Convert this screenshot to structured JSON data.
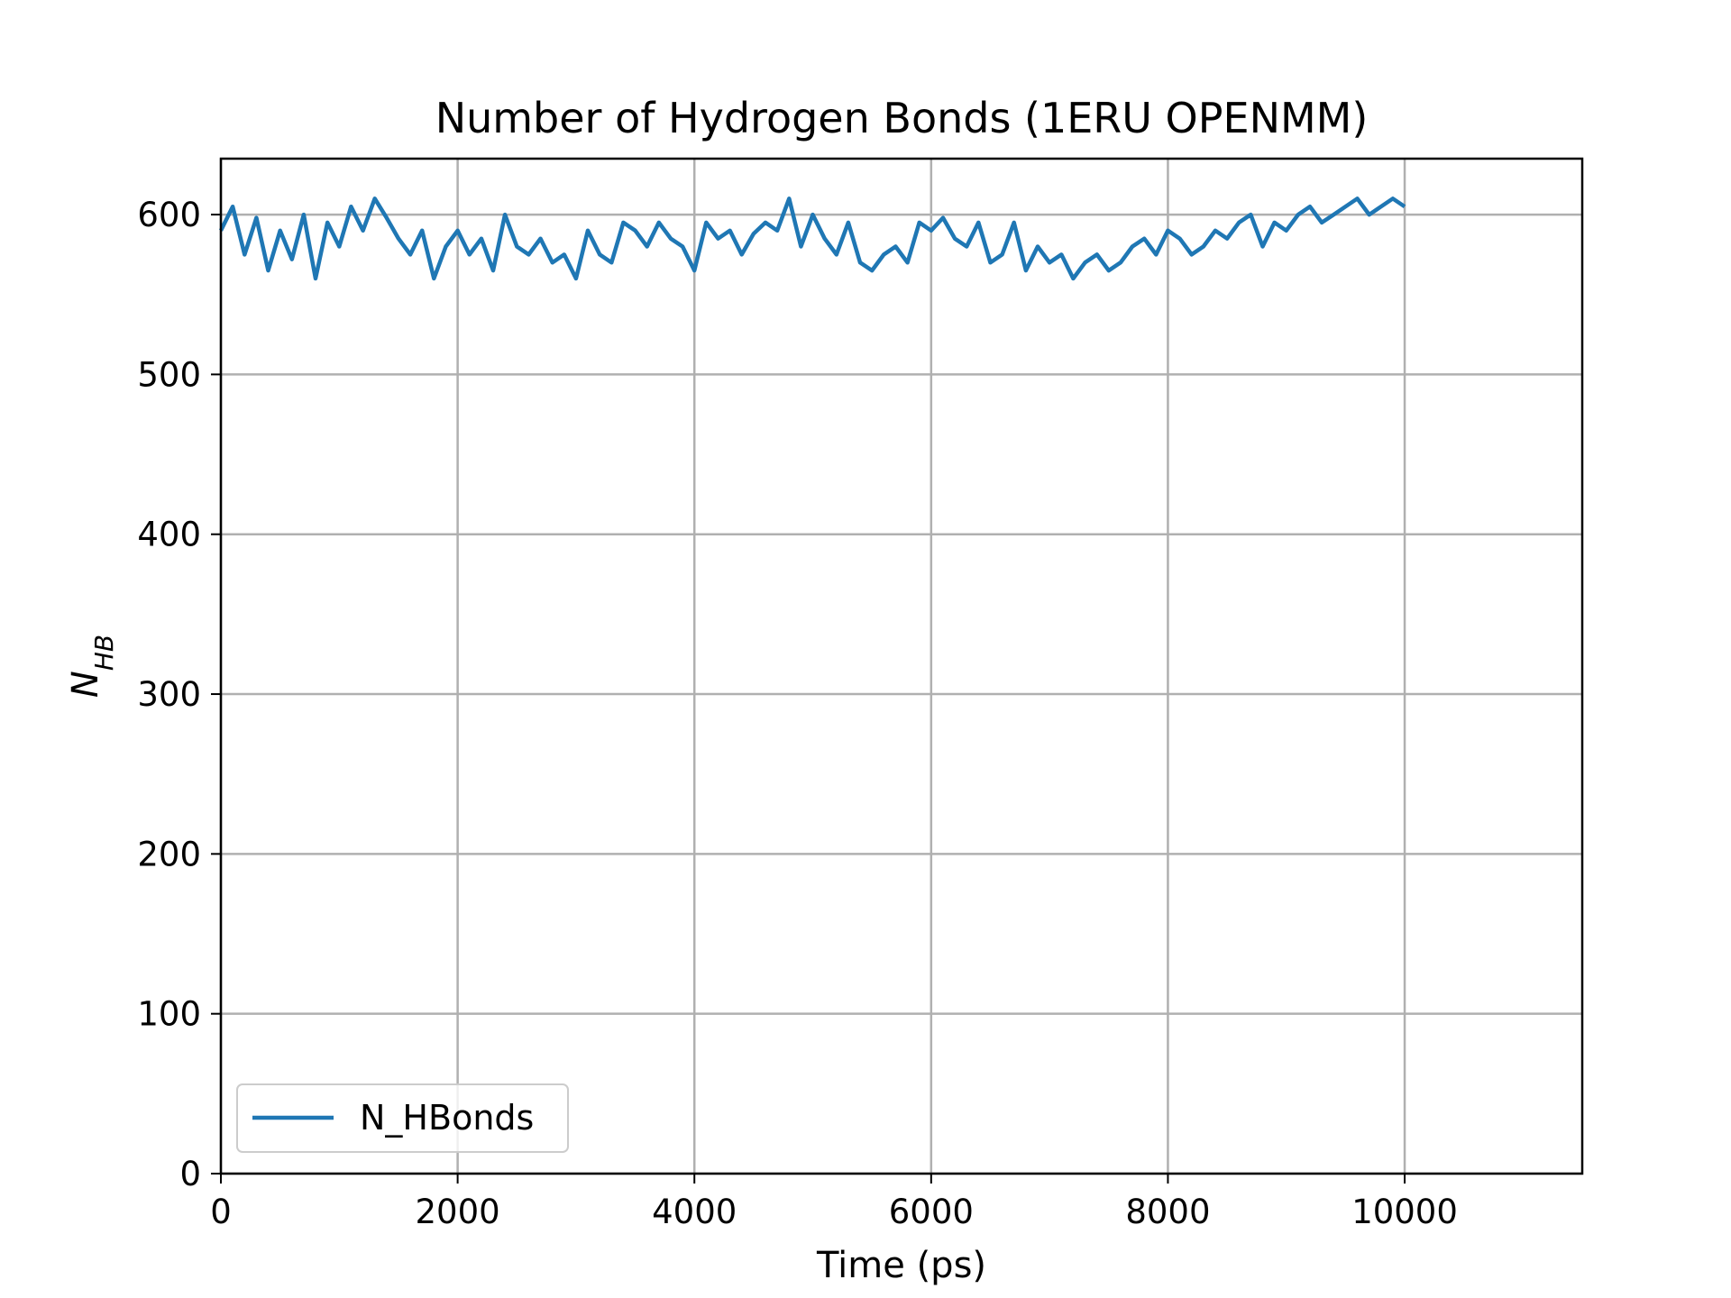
{
  "chart_data": {
    "type": "line",
    "title": "Number of Hydrogen Bonds (1ERU OPENMM)",
    "xlabel": "Time (ps)",
    "ylabel": {
      "main": "N",
      "sub": "HB"
    },
    "xlim": [
      0,
      11500
    ],
    "ylim": [
      0,
      635
    ],
    "xticks": [
      0,
      2000,
      4000,
      6000,
      8000,
      10000
    ],
    "xtick_labels": [
      "0",
      "2000",
      "4000",
      "6000",
      "8000",
      "10000"
    ],
    "yticks": [
      0,
      100,
      200,
      300,
      400,
      500,
      600
    ],
    "ytick_labels": [
      "0",
      "100",
      "200",
      "300",
      "400",
      "500",
      "600"
    ],
    "grid": true,
    "legend_position": "lower-left",
    "series": [
      {
        "name": "N_HBonds",
        "color": "#1f77b4",
        "x": [
          0,
          100,
          200,
          300,
          400,
          500,
          600,
          700,
          800,
          900,
          1000,
          1100,
          1200,
          1300,
          1400,
          1500,
          1600,
          1700,
          1800,
          1900,
          2000,
          2100,
          2200,
          2300,
          2400,
          2500,
          2600,
          2700,
          2800,
          2900,
          3000,
          3100,
          3200,
          3300,
          3400,
          3500,
          3600,
          3700,
          3800,
          3900,
          4000,
          4100,
          4200,
          4300,
          4400,
          4500,
          4600,
          4700,
          4800,
          4900,
          5000,
          5100,
          5200,
          5300,
          5400,
          5500,
          5600,
          5700,
          5800,
          5900,
          6000,
          6100,
          6200,
          6300,
          6400,
          6500,
          6600,
          6700,
          6800,
          6900,
          7000,
          7100,
          7200,
          7300,
          7400,
          7500,
          7600,
          7700,
          7800,
          7900,
          8000,
          8100,
          8200,
          8300,
          8400,
          8500,
          8600,
          8700,
          8800,
          8900,
          9000,
          9100,
          9200,
          9300,
          9400,
          9500,
          9600,
          9700,
          9800,
          9900,
          10000
        ],
        "y": [
          590,
          605,
          575,
          598,
          565,
          590,
          572,
          600,
          560,
          595,
          580,
          605,
          590,
          610,
          598,
          585,
          575,
          590,
          560,
          580,
          590,
          575,
          585,
          565,
          600,
          580,
          575,
          585,
          570,
          575,
          560,
          590,
          575,
          570,
          595,
          590,
          580,
          595,
          585,
          580,
          565,
          595,
          585,
          590,
          575,
          588,
          595,
          590,
          610,
          580,
          600,
          585,
          575,
          595,
          570,
          565,
          575,
          580,
          570,
          595,
          590,
          598,
          585,
          580,
          595,
          570,
          575,
          595,
          565,
          580,
          570,
          575,
          560,
          570,
          575,
          565,
          570,
          580,
          585,
          575,
          590,
          585,
          575,
          580,
          590,
          585,
          595,
          600,
          580,
          595,
          590,
          600,
          605,
          595,
          600,
          605,
          610,
          600,
          605,
          610,
          605
        ]
      }
    ]
  }
}
